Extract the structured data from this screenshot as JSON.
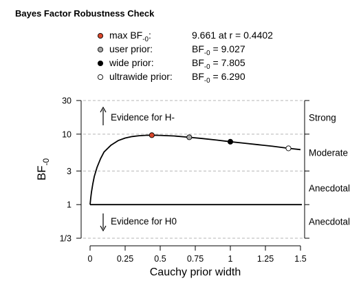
{
  "page_title": "Bayes Factor Robustness Check",
  "legend": [
    {
      "marker": "max",
      "fill": "#d9472b",
      "label": "max BF-0:",
      "label_main": "max BF",
      "label_sub": "-0",
      "label_tail": ":",
      "value": "9.661 at r = 0.4402",
      "value_pre": "",
      "value_sub": "",
      "value_main": "9.661 at r = 0.4402"
    },
    {
      "marker": "user",
      "fill": "#a6a6a6",
      "label": "user prior:",
      "label_main": "user prior:",
      "label_sub": "",
      "label_tail": "",
      "value": "BF-0 = 9.027",
      "value_pre": "BF",
      "value_sub": "-0",
      "value_main": " = 9.027"
    },
    {
      "marker": "wide",
      "fill": "#000000",
      "label": "wide prior:",
      "label_main": "wide prior:",
      "label_sub": "",
      "label_tail": "",
      "value": "BF-0 = 7.805",
      "value_pre": "BF",
      "value_sub": "-0",
      "value_main": " = 7.805"
    },
    {
      "marker": "ultrawide",
      "fill": "#ffffff",
      "label": "ultrawide prior:",
      "label_main": "ultrawide prior:",
      "label_sub": "",
      "label_tail": "",
      "value": "BF-0 = 6.290",
      "value_pre": "BF",
      "value_sub": "-0",
      "value_main": " = 6.290"
    }
  ],
  "chart_data": {
    "type": "line",
    "xlabel": "Cauchy prior width",
    "ylabel": "BF",
    "ylabel_sub": "-0",
    "y_scale": "log",
    "xlim": [
      0,
      1.5
    ],
    "ylim": [
      0.3333,
      30
    ],
    "x_ticks": [
      0,
      0.25,
      0.5,
      0.75,
      1,
      1.25,
      1.5
    ],
    "x_tick_labels": [
      "0",
      "0.25",
      "0.5",
      "0.75",
      "1",
      "1.25",
      "1.5"
    ],
    "y_ticks": [
      0.3333,
      1,
      3,
      10,
      30
    ],
    "y_tick_labels": [
      "1/3",
      "1",
      "3",
      "10",
      "30"
    ],
    "reference_lines": [
      1
    ],
    "dashed_lines": [
      0.3333,
      3,
      10,
      30
    ],
    "curve": {
      "x": [
        0,
        0.005,
        0.01,
        0.02,
        0.03,
        0.05,
        0.075,
        0.1,
        0.15,
        0.2,
        0.25,
        0.3,
        0.35,
        0.4,
        0.4402,
        0.5,
        0.6,
        0.7071,
        0.8,
        0.9,
        1.0,
        1.1,
        1.2,
        1.3,
        1.4142,
        1.5
      ],
      "y": [
        1.0,
        1.25,
        1.5,
        2.0,
        2.5,
        3.4,
        4.5,
        5.6,
        7.0,
        8.1,
        8.8,
        9.25,
        9.5,
        9.63,
        9.661,
        9.62,
        9.42,
        9.027,
        8.67,
        8.24,
        7.805,
        7.43,
        7.07,
        6.73,
        6.29,
        6.03
      ]
    },
    "points": [
      {
        "name": "max",
        "x": 0.4402,
        "y": 9.661,
        "fill": "#d9472b"
      },
      {
        "name": "user prior",
        "x": 0.7071,
        "y": 9.027,
        "fill": "#a6a6a6"
      },
      {
        "name": "wide prior",
        "x": 1.0,
        "y": 7.805,
        "fill": "#000000"
      },
      {
        "name": "ultrawide prior",
        "x": 1.4142,
        "y": 6.29,
        "fill": "#ffffff"
      }
    ],
    "annotations": [
      {
        "text": "Evidence for H-",
        "arrow": "up"
      },
      {
        "text": "Evidence for H0",
        "arrow": "down"
      }
    ],
    "right_labels": [
      {
        "text": "Strong",
        "y": 17.3
      },
      {
        "text": "Moderate",
        "y": 5.5
      },
      {
        "text": "Anecdotal",
        "y": 1.73
      },
      {
        "text": "Anecdotal",
        "y": 0.577
      }
    ]
  }
}
